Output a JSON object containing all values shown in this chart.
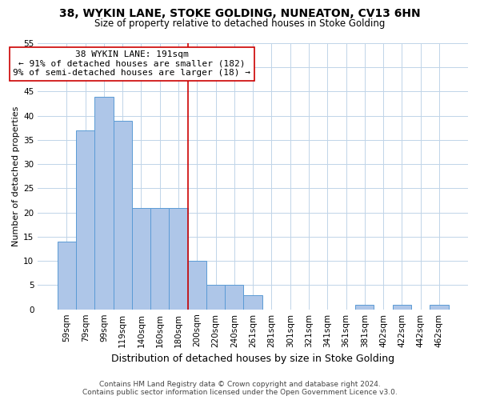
{
  "title": "38, WYKIN LANE, STOKE GOLDING, NUNEATON, CV13 6HN",
  "subtitle": "Size of property relative to detached houses in Stoke Golding",
  "xlabel": "Distribution of detached houses by size in Stoke Golding",
  "ylabel": "Number of detached properties",
  "bar_labels": [
    "59sqm",
    "79sqm",
    "99sqm",
    "119sqm",
    "140sqm",
    "160sqm",
    "180sqm",
    "200sqm",
    "220sqm",
    "240sqm",
    "261sqm",
    "281sqm",
    "301sqm",
    "321sqm",
    "341sqm",
    "361sqm",
    "381sqm",
    "402sqm",
    "422sqm",
    "442sqm",
    "462sqm"
  ],
  "bar_heights": [
    14,
    37,
    44,
    39,
    21,
    21,
    21,
    10,
    5,
    5,
    3,
    0,
    0,
    0,
    0,
    0,
    1,
    0,
    1,
    0,
    1
  ],
  "bar_color": "#aec6e8",
  "bar_edge_color": "#5b9bd5",
  "highlight_label": "38 WYKIN LANE: 191sqm",
  "annotation_line1": "← 91% of detached houses are smaller (182)",
  "annotation_line2": "9% of semi-detached houses are larger (18) →",
  "vline_color": "#cc0000",
  "vline_x_index": 7,
  "ylim": [
    0,
    55
  ],
  "yticks": [
    0,
    5,
    10,
    15,
    20,
    25,
    30,
    35,
    40,
    45,
    50,
    55
  ],
  "background_color": "#ffffff",
  "grid_color": "#c0d4e8",
  "footer_line1": "Contains HM Land Registry data © Crown copyright and database right 2024.",
  "footer_line2": "Contains public sector information licensed under the Open Government Licence v3.0.",
  "title_fontsize": 10,
  "subtitle_fontsize": 8.5,
  "xlabel_fontsize": 9,
  "ylabel_fontsize": 8,
  "annot_fontsize": 8,
  "tick_fontsize": 7.5,
  "footer_fontsize": 6.5
}
